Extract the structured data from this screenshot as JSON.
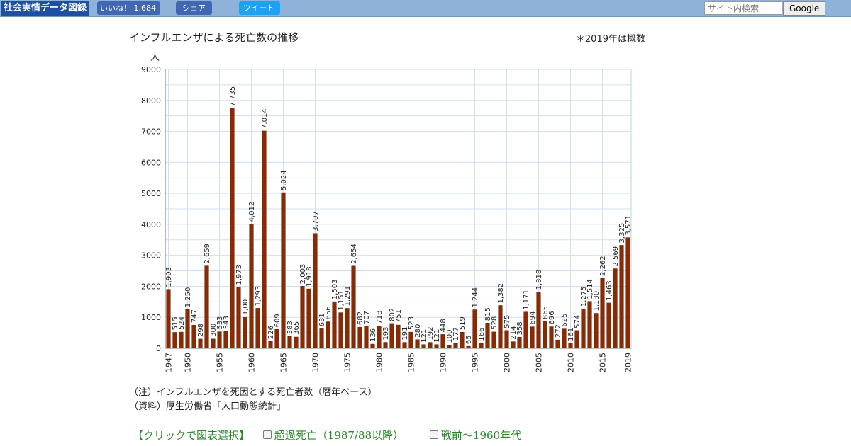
{
  "header": {
    "site_logo": "社会実情データ図録",
    "fb_like_label": "いいね！ 1,684",
    "fb_share_label": "シェア",
    "tweet_label": "ツイート",
    "search_placeholder": "サイト内検索",
    "search_button": "Google"
  },
  "chart_data": {
    "type": "bar",
    "title": "インフルエンザによる死亡数の推移",
    "note": "＊2019年は概数",
    "ylabel": "人",
    "ylim": [
      0,
      9000
    ],
    "yticks": [
      "0",
      "1000",
      "2000",
      "3000",
      "4000",
      "5000",
      "6000",
      "7000",
      "8000",
      "9000"
    ],
    "x": [
      1947,
      1948,
      1949,
      1950,
      1951,
      1952,
      1953,
      1954,
      1955,
      1956,
      1957,
      1958,
      1959,
      1960,
      1961,
      1962,
      1963,
      1964,
      1965,
      1966,
      1967,
      1968,
      1969,
      1970,
      1971,
      1972,
      1973,
      1974,
      1975,
      1976,
      1977,
      1978,
      1979,
      1980,
      1981,
      1982,
      1983,
      1984,
      1985,
      1986,
      1987,
      1988,
      1989,
      1990,
      1991,
      1992,
      1993,
      1994,
      1995,
      1996,
      1997,
      1998,
      1999,
      2000,
      2001,
      2002,
      2003,
      2004,
      2005,
      2006,
      2007,
      2008,
      2009,
      2010,
      2011,
      2012,
      2013,
      2014,
      2015,
      2016,
      2017,
      2018,
      2019
    ],
    "values": [
      1903,
      515,
      524,
      1250,
      747,
      298,
      2659,
      300,
      533,
      543,
      7735,
      1973,
      1001,
      4012,
      1293,
      7014,
      226,
      609,
      5024,
      383,
      365,
      2003,
      1918,
      3707,
      631,
      856,
      1503,
      1151,
      1291,
      2654,
      682,
      707,
      136,
      718,
      193,
      802,
      751,
      191,
      523,
      280,
      121,
      192,
      121,
      448,
      100,
      177,
      519,
      65,
      1244,
      166,
      815,
      528,
      1382,
      575,
      214,
      358,
      1171,
      694,
      1818,
      865,
      696,
      272,
      625,
      161,
      574,
      1275,
      1514,
      1130,
      2262,
      1463,
      2569,
      3325,
      3571
    ],
    "labels": [
      "1,903",
      "515",
      "524",
      "1,250",
      "747",
      "298",
      "2,659",
      "300",
      "533",
      "543",
      "7,735",
      "1,973",
      "1,001",
      "4,012",
      "1,293",
      "7,014",
      "226",
      "609",
      "5,024",
      "383",
      "365",
      "2,003",
      "1,918",
      "3,707",
      "631",
      "856",
      "1,503",
      "1,151",
      "1,291",
      "2,654",
      "682",
      "707",
      "136",
      "718",
      "193",
      "802",
      "751",
      "191",
      "523",
      "280",
      "121",
      "192",
      "121",
      "448",
      "100",
      "177",
      "519",
      "65",
      "1,244",
      "166",
      "815",
      "528",
      "1,382",
      "575",
      "214",
      "358",
      "1,171",
      "694",
      "1,818",
      "865",
      "696",
      "272",
      "625",
      "161",
      "574",
      "1,275",
      "1,514",
      "1,130",
      "2,262",
      "1,463",
      "2,569",
      "3,325",
      "3,571"
    ],
    "xticks": [
      "1947",
      "1950",
      "1955",
      "1960",
      "1965",
      "1970",
      "1975",
      "1980",
      "1985",
      "1990",
      "1995",
      "2000",
      "2005",
      "2010",
      "2015",
      "2019"
    ],
    "grid": true,
    "bar_color": "#8b2a00"
  },
  "footnotes": {
    "note": "（注）インフルエンザを死因とする死亡者数（暦年ベース）",
    "source": "（資料）厚生労働省「人口動態統計」"
  },
  "chart_select": {
    "label": "【クリックで図表選択】",
    "options": [
      "超過死亡（1987/88以降）",
      "戦前～1960年代"
    ]
  }
}
